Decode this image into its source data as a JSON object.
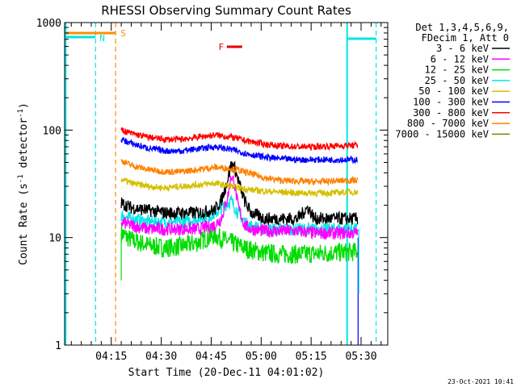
{
  "chart_data": {
    "type": "line",
    "title": "RHESSI Observing Summary Count Rates",
    "xlabel": "Start Time (20-Dec-11 04:01:02)",
    "ylabel_parts": [
      "Count Rate (s",
      "-1",
      " detector",
      "-1",
      ")"
    ],
    "yscale": "log",
    "ylim": [
      1,
      1000
    ],
    "xlim_minutes": [
      0,
      97
    ],
    "x_ticks": [
      "04:15",
      "04:30",
      "04:45",
      "05:00",
      "05:15",
      "05:30"
    ],
    "y_ticks": [
      "1",
      "10",
      "100",
      "1000"
    ],
    "legend_header": [
      "Det 1,3,4,5,6,9,",
      "FDecim 1, Att 0"
    ],
    "legend_placement": "right",
    "timestamp": "23-Oct-2021 10:41",
    "markers": {
      "S": {
        "label": "S",
        "color": "#ff8c00"
      },
      "N": {
        "label": "N",
        "color": "#00e5e5"
      },
      "F": {
        "label": "F",
        "color": "#e00000"
      }
    },
    "series": [
      {
        "name": "3 - 6 keV",
        "color": "#000000",
        "values": [
          [
            17.0,
            21
          ],
          [
            20,
            19
          ],
          [
            25,
            18
          ],
          [
            30,
            17
          ],
          [
            35,
            17
          ],
          [
            40,
            17
          ],
          [
            45,
            18
          ],
          [
            47,
            22
          ],
          [
            49,
            35
          ],
          [
            50,
            48
          ],
          [
            51,
            45
          ],
          [
            52,
            35
          ],
          [
            54,
            22
          ],
          [
            56,
            17
          ],
          [
            60,
            15
          ],
          [
            65,
            15
          ],
          [
            70,
            15
          ],
          [
            73,
            19
          ],
          [
            75,
            15
          ],
          [
            80,
            15
          ],
          [
            85,
            15
          ],
          [
            88,
            15
          ]
        ]
      },
      {
        "name": "6 - 12 keV",
        "color": "#ff00ff",
        "values": [
          [
            17.0,
            14
          ],
          [
            20,
            13
          ],
          [
            25,
            12
          ],
          [
            30,
            12
          ],
          [
            35,
            12
          ],
          [
            40,
            12
          ],
          [
            45,
            13
          ],
          [
            47,
            15
          ],
          [
            49,
            24
          ],
          [
            50,
            38
          ],
          [
            51,
            32
          ],
          [
            52,
            20
          ],
          [
            54,
            13
          ],
          [
            56,
            12
          ],
          [
            60,
            11.5
          ],
          [
            65,
            11.5
          ],
          [
            70,
            11.5
          ],
          [
            75,
            11
          ],
          [
            80,
            11
          ],
          [
            85,
            11
          ],
          [
            88,
            11
          ]
        ]
      },
      {
        "name": "12 - 25 keV",
        "color": "#00dd00",
        "values": [
          [
            17.0,
            11
          ],
          [
            20,
            9.5
          ],
          [
            25,
            8.5
          ],
          [
            30,
            8
          ],
          [
            35,
            8.3
          ],
          [
            40,
            9
          ],
          [
            43,
            10
          ],
          [
            45,
            10.5
          ],
          [
            47,
            9.8
          ],
          [
            50,
            9
          ],
          [
            55,
            7.8
          ],
          [
            60,
            7.2
          ],
          [
            65,
            7
          ],
          [
            70,
            7
          ],
          [
            75,
            7.1
          ],
          [
            80,
            7.2
          ],
          [
            85,
            7.3
          ],
          [
            88,
            7.4
          ]
        ]
      },
      {
        "name": "25 - 50 keV",
        "color": "#00e5e5",
        "values": [
          [
            17.0,
            16
          ],
          [
            20,
            15
          ],
          [
            25,
            14
          ],
          [
            30,
            14
          ],
          [
            35,
            14
          ],
          [
            40,
            15
          ],
          [
            45,
            16.5
          ],
          [
            48,
            20
          ],
          [
            50,
            22
          ],
          [
            52,
            17
          ],
          [
            55,
            13
          ],
          [
            60,
            12
          ],
          [
            65,
            12
          ],
          [
            70,
            12
          ],
          [
            75,
            12
          ],
          [
            80,
            12
          ],
          [
            85,
            12
          ],
          [
            88,
            12
          ]
        ]
      },
      {
        "name": "50 - 100 keV",
        "color": "#d4c000",
        "values": [
          [
            17.0,
            35
          ],
          [
            20,
            32
          ],
          [
            25,
            30
          ],
          [
            30,
            29
          ],
          [
            35,
            30
          ],
          [
            40,
            31
          ],
          [
            45,
            32
          ],
          [
            50,
            30
          ],
          [
            55,
            28
          ],
          [
            60,
            27
          ],
          [
            65,
            26.5
          ],
          [
            70,
            26
          ],
          [
            75,
            26
          ],
          [
            80,
            26
          ],
          [
            85,
            26.5
          ],
          [
            88,
            26.5
          ]
        ]
      },
      {
        "name": "100 - 300 keV",
        "color": "#0000ff",
        "values": [
          [
            17.0,
            82
          ],
          [
            20,
            75
          ],
          [
            25,
            68
          ],
          [
            30,
            64
          ],
          [
            35,
            64
          ],
          [
            40,
            67
          ],
          [
            45,
            70
          ],
          [
            50,
            66
          ],
          [
            55,
            60
          ],
          [
            60,
            56
          ],
          [
            65,
            54
          ],
          [
            70,
            53
          ],
          [
            75,
            53
          ],
          [
            80,
            53
          ],
          [
            85,
            53
          ],
          [
            88,
            53
          ]
        ]
      },
      {
        "name": "300 - 800 keV",
        "color": "#ff0000",
        "values": [
          [
            17.0,
            100
          ],
          [
            20,
            93
          ],
          [
            25,
            86
          ],
          [
            30,
            82
          ],
          [
            35,
            82
          ],
          [
            40,
            86
          ],
          [
            45,
            90
          ],
          [
            50,
            86
          ],
          [
            55,
            79
          ],
          [
            60,
            74
          ],
          [
            65,
            71
          ],
          [
            70,
            70
          ],
          [
            75,
            70
          ],
          [
            80,
            71
          ],
          [
            85,
            72
          ],
          [
            88,
            72
          ]
        ]
      },
      {
        "name": "800 - 7000 keV",
        "color": "#ff8000",
        "values": [
          [
            17.0,
            52
          ],
          [
            20,
            47
          ],
          [
            25,
            43
          ],
          [
            30,
            41
          ],
          [
            35,
            41
          ],
          [
            40,
            43
          ],
          [
            45,
            45
          ],
          [
            50,
            44
          ],
          [
            55,
            40
          ],
          [
            60,
            36
          ],
          [
            65,
            34
          ],
          [
            70,
            33.5
          ],
          [
            75,
            33
          ],
          [
            80,
            33.5
          ],
          [
            85,
            34
          ],
          [
            88,
            34
          ]
        ]
      },
      {
        "name": "7000 - 15000 keV",
        "color": "#808000",
        "values": []
      }
    ]
  }
}
